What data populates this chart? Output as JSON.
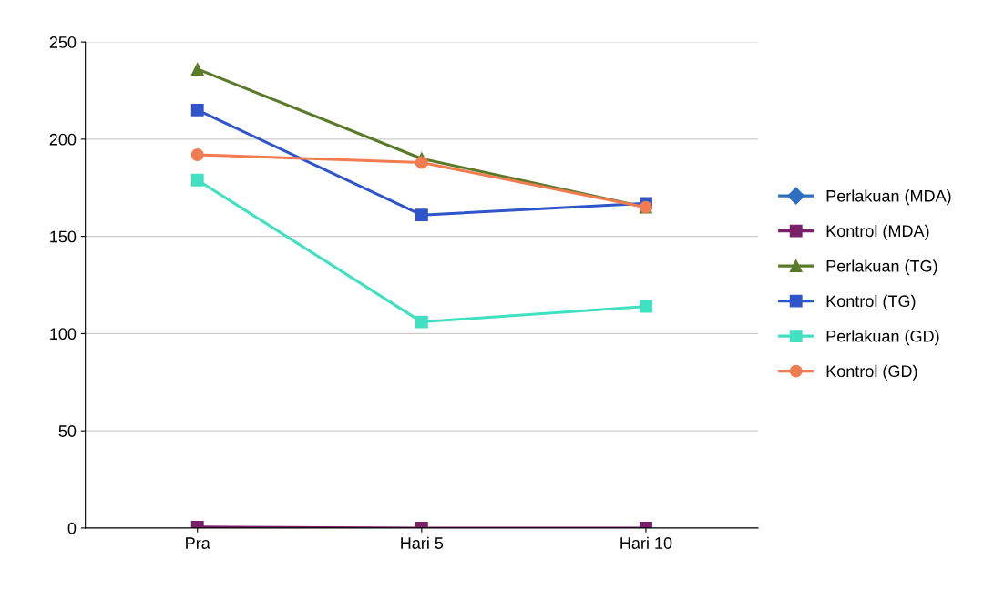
{
  "chart_data": {
    "type": "line",
    "categories": [
      "Pra",
      "Hari 5",
      "Hari 10"
    ],
    "ylim": [
      0,
      250
    ],
    "yticks": [
      0,
      50,
      100,
      150,
      200,
      250
    ],
    "grid": "y",
    "legend": "right",
    "series": [
      {
        "name": "Perlakuan (MDA)",
        "color": "#2e6fc0",
        "marker": "diamond",
        "values": [
          null,
          null,
          null
        ]
      },
      {
        "name": "Kontrol (MDA)",
        "color": "#7b1f6a",
        "marker": "square",
        "values": [
          0.5,
          0,
          0
        ]
      },
      {
        "name": "Perlakuan (TG)",
        "color": "#5a7a2a",
        "marker": "triangle",
        "values": [
          236,
          190,
          165
        ]
      },
      {
        "name": "Kontrol (TG)",
        "color": "#2f55c8",
        "marker": "square",
        "values": [
          215,
          161,
          167
        ]
      },
      {
        "name": "Perlakuan (GD)",
        "color": "#40e0c0",
        "marker": "square",
        "values": [
          179,
          106,
          114
        ]
      },
      {
        "name": "Kontrol (GD)",
        "color": "#f07c50",
        "marker": "circle",
        "values": [
          192,
          188,
          165
        ]
      }
    ]
  }
}
